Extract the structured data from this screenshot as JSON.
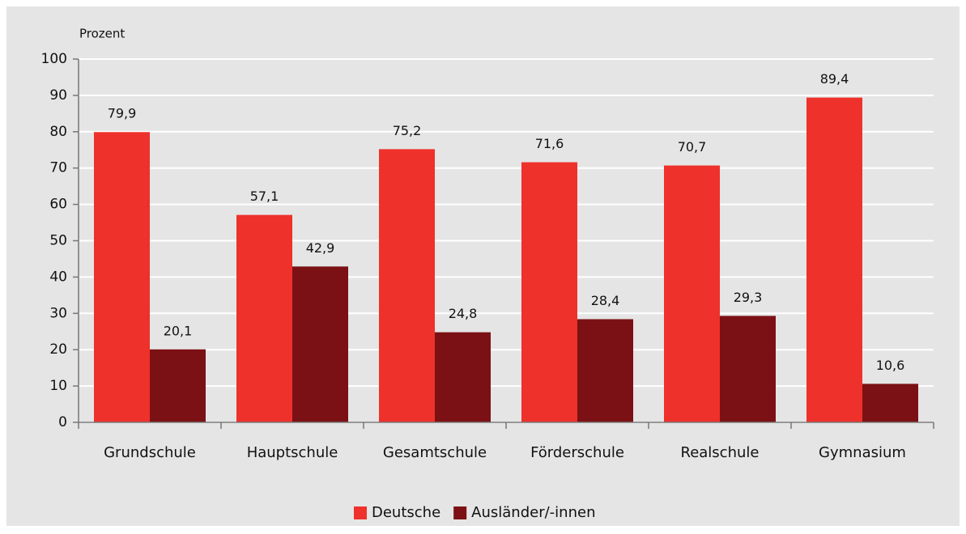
{
  "chart_data": {
    "type": "bar",
    "y_label": "Prozent",
    "categories": [
      "Grundschule",
      "Hauptschule",
      "Gesamtschule",
      "Förderschule",
      "Realschule",
      "Gymnasium"
    ],
    "series": [
      {
        "name": "Deutsche",
        "color": "#ee312b",
        "values": [
          79.9,
          57.1,
          75.2,
          71.6,
          70.7,
          89.4
        ],
        "value_labels": [
          "79,9",
          "57,1",
          "75,2",
          "71,6",
          "70,7",
          "89,4"
        ]
      },
      {
        "name": "Ausländer/-innen",
        "color": "#7b1114",
        "values": [
          20.1,
          42.9,
          24.8,
          28.4,
          29.3,
          10.6
        ],
        "value_labels": [
          "20,1",
          "42,9",
          "24,8",
          "28,4",
          "29,3",
          "10,6"
        ]
      }
    ],
    "ylim": [
      0,
      100
    ],
    "yticks": [
      0,
      10,
      20,
      30,
      40,
      50,
      60,
      70,
      80,
      90,
      100
    ],
    "grid": true,
    "legend": "bottom"
  }
}
